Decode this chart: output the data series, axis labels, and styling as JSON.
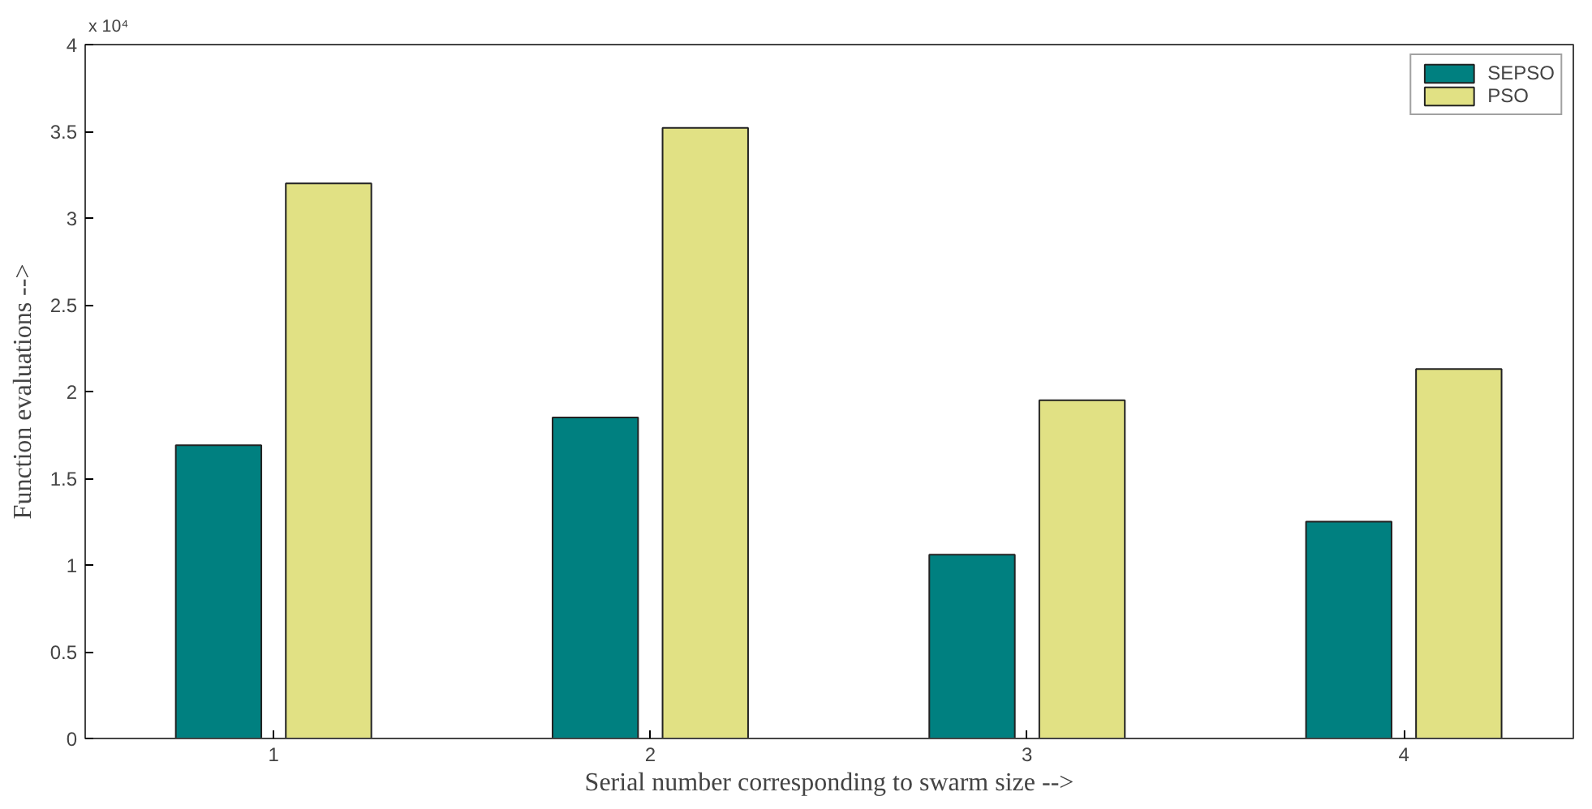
{
  "chart_data": {
    "type": "bar",
    "xlabel": "Serial number corresponding to swarm size -->",
    "ylabel": "Function evaluations -->",
    "annotations": [
      "x 10⁴"
    ],
    "categories": [
      "1",
      "2",
      "3",
      "4"
    ],
    "series": [
      {
        "name": "SEPSO",
        "color": "#008080",
        "values": [
          1.69,
          1.85,
          1.06,
          1.25
        ]
      },
      {
        "name": "PSO",
        "color": "#e1e184",
        "values": [
          3.2,
          3.52,
          1.95,
          2.13
        ]
      }
    ],
    "ylim": [
      0,
      4
    ],
    "yticks": [
      0,
      0.5,
      1,
      1.5,
      2,
      2.5,
      3,
      3.5,
      4
    ],
    "grid": false,
    "legend": "top right"
  }
}
